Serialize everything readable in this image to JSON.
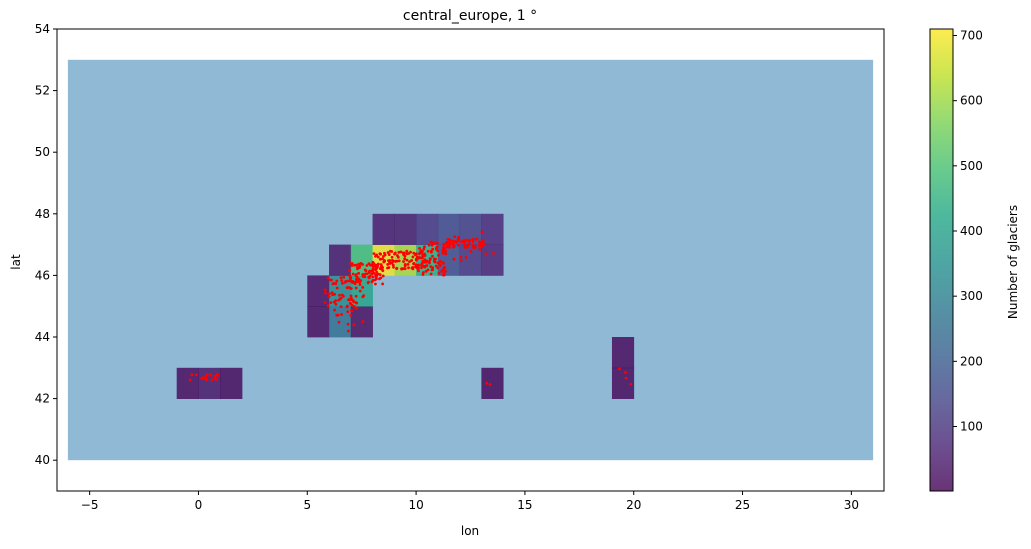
{
  "chart_data": {
    "type": "heatmap",
    "title": "central_europe, 1 °",
    "xlabel": "lon",
    "ylabel": "lat",
    "xlim": [
      -6.5,
      31.5
    ],
    "ylim": [
      39,
      54
    ],
    "xticks": [
      -5,
      0,
      5,
      10,
      15,
      20,
      25,
      30
    ],
    "yticks": [
      40,
      42,
      44,
      46,
      48,
      50,
      52,
      54
    ],
    "region_extent": {
      "lon": [
        -6,
        31
      ],
      "lat": [
        40,
        53
      ]
    },
    "region_color": "#90b9d6",
    "colorbar": {
      "label": "Number of glaciers",
      "range": [
        1,
        710
      ],
      "ticks": [
        100,
        200,
        300,
        400,
        500,
        600,
        700
      ],
      "colormap": "viridis",
      "alpha": 0.8
    },
    "cells": [
      {
        "lon": -1,
        "lat": 42,
        "count": 10
      },
      {
        "lon": 0,
        "lat": 42,
        "count": 35
      },
      {
        "lon": 1,
        "lat": 42,
        "count": 8
      },
      {
        "lon": 5,
        "lat": 44,
        "count": 12
      },
      {
        "lon": 5,
        "lat": 45,
        "count": 15
      },
      {
        "lon": 6,
        "lat": 44,
        "count": 250
      },
      {
        "lon": 6,
        "lat": 45,
        "count": 330
      },
      {
        "lon": 6,
        "lat": 46,
        "count": 35
      },
      {
        "lon": 7,
        "lat": 44,
        "count": 20
      },
      {
        "lon": 7,
        "lat": 45,
        "count": 410
      },
      {
        "lon": 7,
        "lat": 46,
        "count": 490
      },
      {
        "lon": 8,
        "lat": 46,
        "count": 700
      },
      {
        "lon": 8,
        "lat": 47,
        "count": 40
      },
      {
        "lon": 9,
        "lat": 46,
        "count": 620
      },
      {
        "lon": 9,
        "lat": 47,
        "count": 45
      },
      {
        "lon": 10,
        "lat": 46,
        "count": 440
      },
      {
        "lon": 10,
        "lat": 47,
        "count": 100
      },
      {
        "lon": 11,
        "lat": 46,
        "count": 150
      },
      {
        "lon": 11,
        "lat": 47,
        "count": 140
      },
      {
        "lon": 12,
        "lat": 46,
        "count": 100
      },
      {
        "lon": 12,
        "lat": 47,
        "count": 120
      },
      {
        "lon": 13,
        "lat": 46,
        "count": 60
      },
      {
        "lon": 13,
        "lat": 47,
        "count": 70
      },
      {
        "lon": 13,
        "lat": 42,
        "count": 5
      },
      {
        "lon": 19,
        "lat": 42,
        "count": 8
      },
      {
        "lon": 19,
        "lat": 43,
        "count": 10
      }
    ],
    "points": {
      "color": "#ff0000",
      "clusters": [
        {
          "lon": [
            5.8,
            7.6
          ],
          "lat": [
            44.7,
            46.0
          ],
          "n": 80
        },
        {
          "lon": [
            6.9,
            8.5
          ],
          "lat": [
            45.7,
            46.4
          ],
          "n": 90
        },
        {
          "lon": [
            8.0,
            10.5
          ],
          "lat": [
            46.2,
            46.8
          ],
          "n": 110
        },
        {
          "lon": [
            10.0,
            11.4
          ],
          "lat": [
            46.0,
            47.1
          ],
          "n": 90
        },
        {
          "lon": [
            11.4,
            13.2
          ],
          "lat": [
            46.9,
            47.2
          ],
          "n": 60
        },
        {
          "lon": [
            11.7,
            13.7
          ],
          "lat": [
            46.4,
            47.5
          ],
          "n": 14
        },
        {
          "lon": [
            -0.4,
            0.9
          ],
          "lat": [
            42.6,
            42.8
          ],
          "n": 18
        },
        {
          "lon": [
            6.4,
            7.6
          ],
          "lat": [
            44.1,
            44.6
          ],
          "n": 5
        },
        {
          "lon": [
            13.2,
            13.4
          ],
          "lat": [
            42.4,
            42.5
          ],
          "n": 2
        },
        {
          "lon": [
            19.3,
            19.9
          ],
          "lat": [
            42.4,
            43.1
          ],
          "n": 4
        }
      ]
    }
  }
}
